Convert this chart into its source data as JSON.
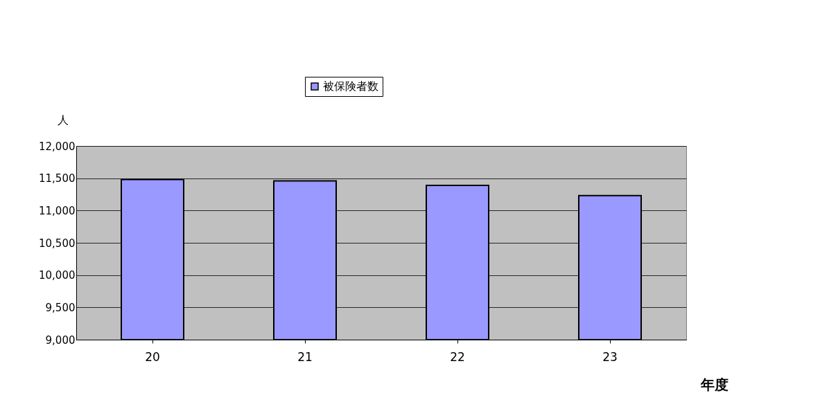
{
  "chart_data": {
    "type": "bar",
    "xlabel": "年度",
    "ylabel": "人",
    "categories": [
      "20",
      "21",
      "22",
      "23"
    ],
    "series": [
      {
        "name": "被保険者数",
        "color": "#9999ff",
        "values": [
          11480,
          11460,
          11390,
          11230
        ]
      }
    ],
    "ylim": [
      9000,
      12000
    ],
    "yticks": [
      {
        "value": 9000,
        "label": "9,000"
      },
      {
        "value": 9500,
        "label": "9,500"
      },
      {
        "value": 10000,
        "label": "10,000"
      },
      {
        "value": 10500,
        "label": "10,500"
      },
      {
        "value": 11000,
        "label": "11,000"
      },
      {
        "value": 11500,
        "label": "11,500"
      },
      {
        "value": 12000,
        "label": "12,000"
      }
    ],
    "grid": "y",
    "legend": "top"
  }
}
